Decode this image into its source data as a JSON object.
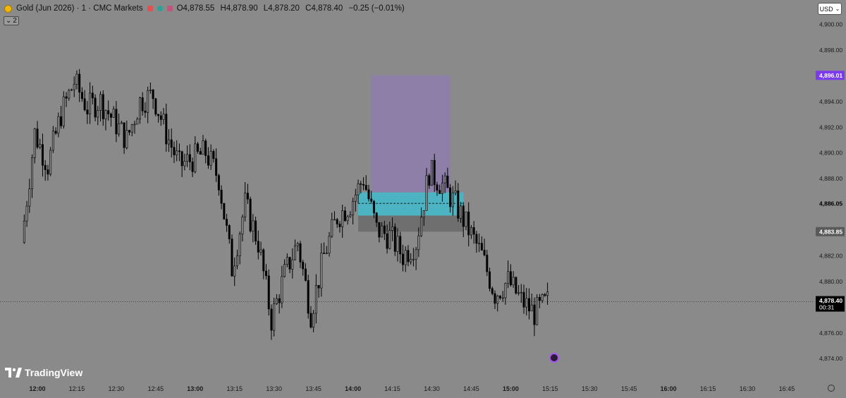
{
  "header": {
    "symbol_title": "Gold (Jun 2026) · 1 · CMC Markets",
    "open": "O4,878.55",
    "high": "H4,878.90",
    "low": "L4,878.20",
    "close": "C4,878.40",
    "change": "−0.25 (−0.01%)",
    "indicator_count": "2"
  },
  "currency_button": {
    "label": "USD"
  },
  "logo_text": "TradingView",
  "price_axis": {
    "ticks": [
      {
        "label": "4,900.00",
        "value": 4900
      },
      {
        "label": "4,898.00",
        "value": 4898
      },
      {
        "label": "4,894.00",
        "value": 4894
      },
      {
        "label": "4,892.00",
        "value": 4892
      },
      {
        "label": "4,890.00",
        "value": 4890
      },
      {
        "label": "4,888.00",
        "value": 4888
      },
      {
        "label": "4,882.00",
        "value": 4882
      },
      {
        "label": "4,880.00",
        "value": 4880
      },
      {
        "label": "4,876.00",
        "value": 4876
      },
      {
        "label": "4,874.00",
        "value": 4874
      }
    ],
    "badges": [
      {
        "label": "4,896.01",
        "value": 4896.01,
        "bg": "#7c3aed",
        "fg": "#ffffff"
      },
      {
        "label": "4,886.05",
        "value": 4886.05,
        "bg": "#8a8a8a",
        "fg": "#000000"
      },
      {
        "label": "4,883.85",
        "value": 4883.85,
        "bg": "#5a5a5a",
        "fg": "#ffffff"
      }
    ],
    "last_price": {
      "label": "4,878.40",
      "countdown": "00:31",
      "value": 4878.4
    }
  },
  "time_axis": {
    "ticks": [
      {
        "label": "12:00",
        "bold": true
      },
      {
        "label": "12:15",
        "bold": false
      },
      {
        "label": "12:30",
        "bold": false
      },
      {
        "label": "12:45",
        "bold": false
      },
      {
        "label": "13:00",
        "bold": true
      },
      {
        "label": "13:15",
        "bold": false
      },
      {
        "label": "13:30",
        "bold": false
      },
      {
        "label": "13:45",
        "bold": false
      },
      {
        "label": "14:00",
        "bold": true
      },
      {
        "label": "14:15",
        "bold": false
      },
      {
        "label": "14:30",
        "bold": false
      },
      {
        "label": "14:45",
        "bold": false
      },
      {
        "label": "15:00",
        "bold": true
      },
      {
        "label": "15:15",
        "bold": false
      },
      {
        "label": "15:30",
        "bold": false
      },
      {
        "label": "15:45",
        "bold": false
      },
      {
        "label": "16:00",
        "bold": true
      },
      {
        "label": "16:15",
        "bold": false
      },
      {
        "label": "16:30",
        "bold": false
      },
      {
        "label": "16:45",
        "bold": false
      }
    ]
  },
  "colors": {
    "background": "#8a8a8a",
    "candle": "#000000",
    "zone_purple": "#8e7fa8",
    "zone_cyan": "#4cb3c2",
    "zone_dark": "#6f6f6f",
    "accent": "#7c3aed"
  },
  "chart_data": {
    "type": "candlestick",
    "series": [
      {
        "name": "Gold (Jun 2026)",
        "points": [
          {
            "t": "11:55",
            "c": 4883
          },
          {
            "t": "12:00",
            "c": 4891.5
          },
          {
            "t": "12:05",
            "c": 4889
          },
          {
            "t": "12:10",
            "c": 4893
          },
          {
            "t": "12:15",
            "c": 4895.5
          },
          {
            "t": "12:20",
            "c": 4893.5
          },
          {
            "t": "12:25",
            "c": 4894
          },
          {
            "t": "12:30",
            "c": 4892.5
          },
          {
            "t": "12:35",
            "c": 4891
          },
          {
            "t": "12:40",
            "c": 4894
          },
          {
            "t": "12:45",
            "c": 4894.5
          },
          {
            "t": "12:50",
            "c": 4891.5
          },
          {
            "t": "12:55",
            "c": 4889
          },
          {
            "t": "13:00",
            "c": 4889.5
          },
          {
            "t": "13:05",
            "c": 4890
          },
          {
            "t": "13:10",
            "c": 4888
          },
          {
            "t": "13:15",
            "c": 4881
          },
          {
            "t": "13:20",
            "c": 4886
          },
          {
            "t": "13:25",
            "c": 4883
          },
          {
            "t": "13:30",
            "c": 4877
          },
          {
            "t": "13:35",
            "c": 4880.5
          },
          {
            "t": "13:40",
            "c": 4883
          },
          {
            "t": "13:45",
            "c": 4877.5
          },
          {
            "t": "13:50",
            "c": 4882
          },
          {
            "t": "13:55",
            "c": 4885
          },
          {
            "t": "14:00",
            "c": 4886
          },
          {
            "t": "14:05",
            "c": 4888
          },
          {
            "t": "14:10",
            "c": 4884
          },
          {
            "t": "14:15",
            "c": 4883.5
          },
          {
            "t": "14:20",
            "c": 4882
          },
          {
            "t": "14:25",
            "c": 4883
          },
          {
            "t": "14:30",
            "c": 4888.5
          },
          {
            "t": "14:35",
            "c": 4887.5
          },
          {
            "t": "14:40",
            "c": 4886
          },
          {
            "t": "14:45",
            "c": 4884
          },
          {
            "t": "14:50",
            "c": 4882
          },
          {
            "t": "14:55",
            "c": 4879
          },
          {
            "t": "15:00",
            "c": 4880
          },
          {
            "t": "15:05",
            "c": 4878.5
          },
          {
            "t": "15:10",
            "c": 4877.5
          },
          {
            "t": "15:15",
            "c": 4878.4
          }
        ]
      }
    ],
    "ylim": [
      4873,
      4902
    ],
    "x_range": [
      "11:50",
      "16:55"
    ],
    "zones": [
      {
        "name": "target",
        "from": 4886.9,
        "to": 4896.01,
        "t0": "14:07",
        "t1": "14:37",
        "color": "#8e7fa8"
      },
      {
        "name": "entry",
        "from": 4885.1,
        "to": 4886.9,
        "t0": "14:02",
        "t1": "14:42",
        "color": "#4cb3c2"
      },
      {
        "name": "stop",
        "from": 4883.85,
        "to": 4885.1,
        "t0": "14:02",
        "t1": "14:42",
        "color": "#6f6f6f"
      }
    ],
    "entry_line": 4886.05,
    "last_price": 4878.4
  }
}
